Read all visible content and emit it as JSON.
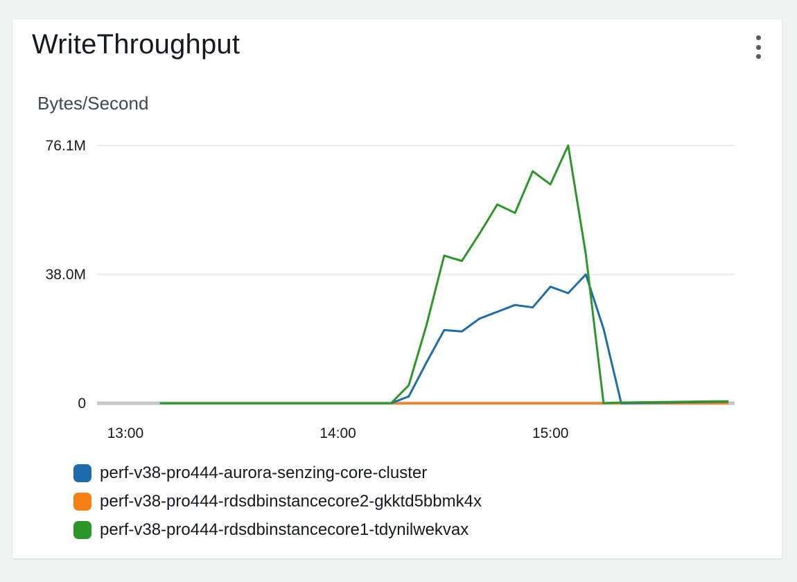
{
  "widget": {
    "title": "WriteThroughput",
    "unit_label": "Bytes/Second",
    "menu_icon": "vertical-ellipsis-icon"
  },
  "chart_data": {
    "type": "line",
    "title": "WriteThroughput",
    "ylabel": "Bytes/Second",
    "ylim": [
      0,
      76.1
    ],
    "yunit": "M",
    "yticks": [
      {
        "value": 0,
        "label": "0"
      },
      {
        "value": 38.0,
        "label": "38.0M"
      },
      {
        "value": 76.1,
        "label": "76.1M"
      }
    ],
    "xlim": [
      "12:52",
      "15:52"
    ],
    "xticks": [
      "13:00",
      "14:00",
      "15:00"
    ],
    "grid": true,
    "legend_position": "bottom",
    "x": [
      "13:10",
      "13:20",
      "13:30",
      "13:40",
      "13:50",
      "14:00",
      "14:05",
      "14:10",
      "14:15",
      "14:20",
      "14:25",
      "14:30",
      "14:35",
      "14:40",
      "14:45",
      "14:50",
      "14:55",
      "15:00",
      "15:05",
      "15:10",
      "15:15",
      "15:20",
      "15:50"
    ],
    "series": [
      {
        "name": "perf-v38-pro444-aurora-senzing-core-cluster",
        "color": "#1f6cad",
        "values": [
          0,
          0,
          0,
          0,
          0,
          0,
          0,
          0,
          0,
          2,
          12,
          21.6,
          21.2,
          25,
          27,
          29,
          28.3,
          34.4,
          32.5,
          38,
          22,
          0,
          0.5
        ]
      },
      {
        "name": "perf-v38-pro444-rdsdbinstancecore2-gkktd5bbmk4x",
        "color": "#f38013",
        "values": [
          0,
          0,
          0,
          0,
          0,
          0,
          0,
          0,
          0,
          0,
          0,
          0,
          0,
          0,
          0,
          0,
          0,
          0,
          0,
          0,
          0,
          0,
          0
        ]
      },
      {
        "name": "perf-v38-pro444-rdsdbinstancecore1-tdynilwekvax",
        "color": "#2b9627",
        "values": [
          0,
          0,
          0,
          0,
          0,
          0,
          0,
          0,
          0,
          5.3,
          23,
          43.6,
          42,
          50.1,
          58.7,
          56.2,
          68.5,
          64.6,
          76.1,
          44,
          0,
          0.2,
          0.6
        ]
      }
    ]
  }
}
